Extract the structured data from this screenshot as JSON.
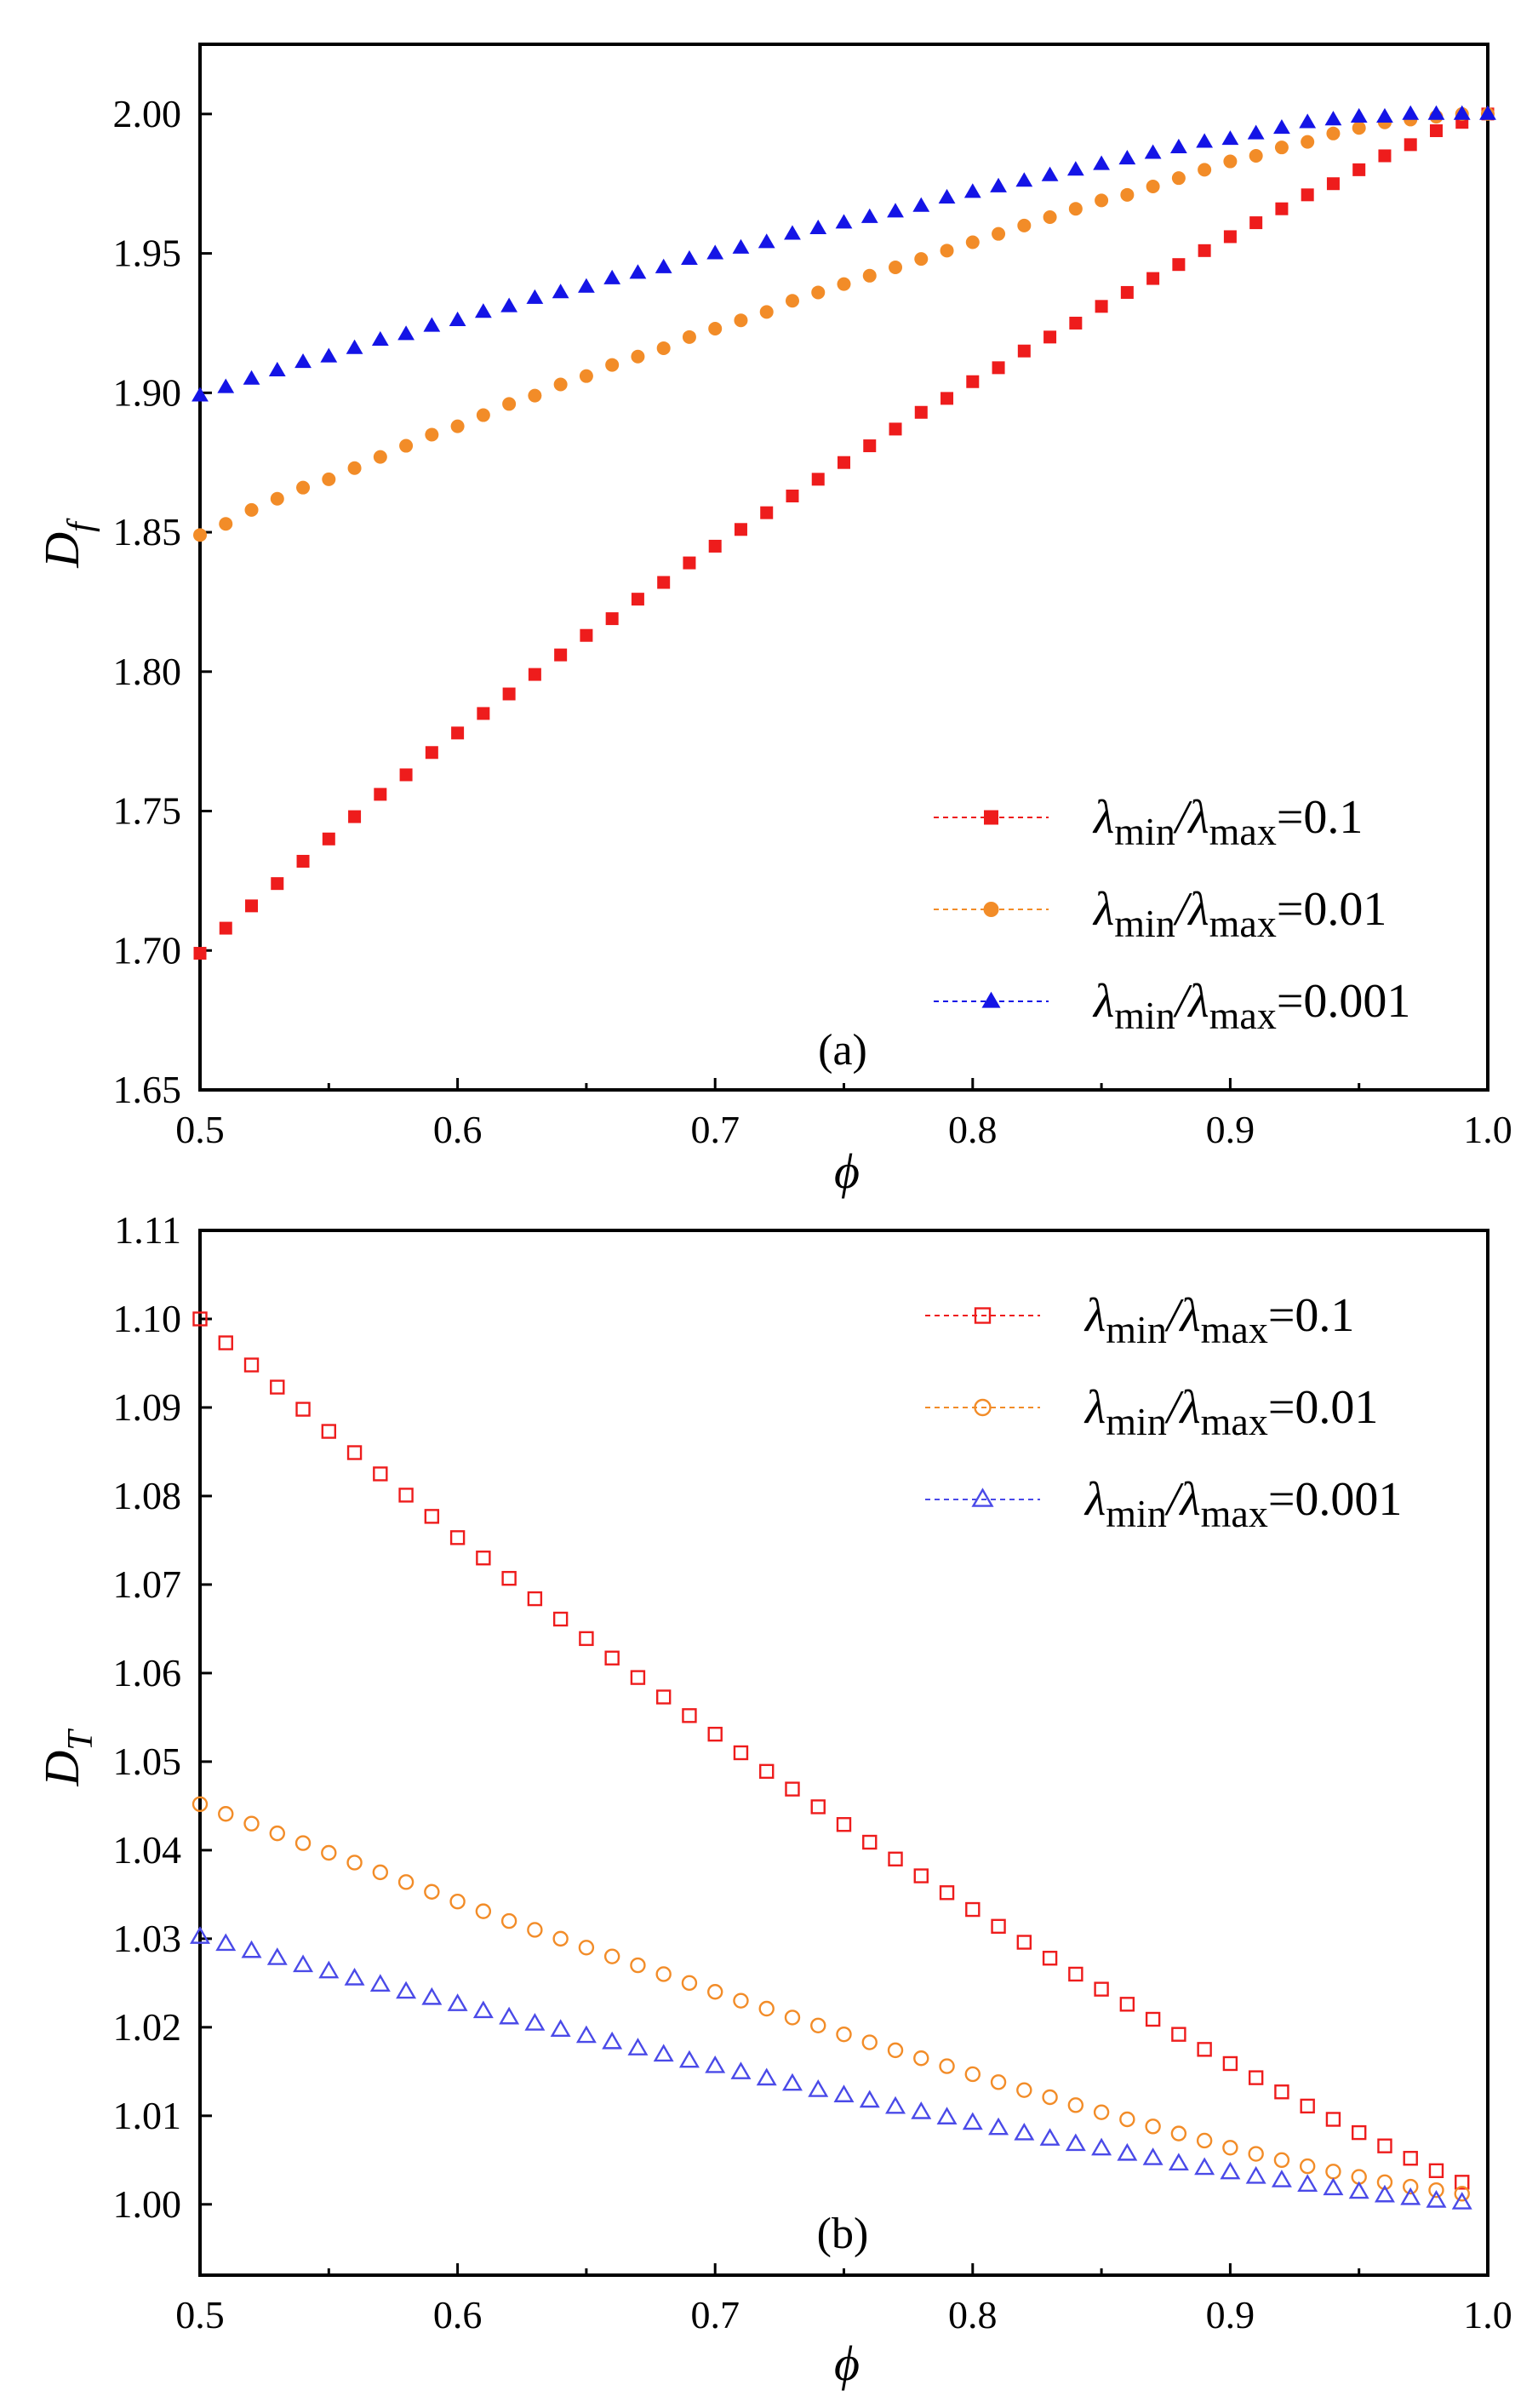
{
  "chart_data": [
    {
      "id": "a",
      "type": "scatter",
      "panel_label": "(a)",
      "xlabel": "ϕ",
      "ylabel": {
        "base": "D",
        "sub": "f"
      },
      "xlim": [
        0.5,
        1.0
      ],
      "ylim": [
        1.65,
        2.025
      ],
      "xticks": [
        0.5,
        0.6,
        0.7,
        0.8,
        0.9,
        1.0
      ],
      "xtick_labels": [
        "0.5",
        "0.6",
        "0.7",
        "0.8",
        "0.9",
        "1.0"
      ],
      "yticks": [
        1.65,
        1.7,
        1.75,
        1.8,
        1.85,
        1.9,
        1.95,
        2.0
      ],
      "ytick_labels": [
        "1.65",
        "1.70",
        "1.75",
        "1.80",
        "1.85",
        "1.90",
        "1.95",
        "2.00"
      ],
      "legend_position": "bottom-right",
      "x": [
        0.5,
        0.51,
        0.52,
        0.53,
        0.54,
        0.55,
        0.56,
        0.57,
        0.58,
        0.59,
        0.6,
        0.61,
        0.62,
        0.63,
        0.64,
        0.65,
        0.66,
        0.67,
        0.68,
        0.69,
        0.7,
        0.71,
        0.72,
        0.73,
        0.74,
        0.75,
        0.76,
        0.77,
        0.78,
        0.79,
        0.8,
        0.81,
        0.82,
        0.83,
        0.84,
        0.85,
        0.86,
        0.87,
        0.88,
        0.89,
        0.9,
        0.91,
        0.92,
        0.93,
        0.94,
        0.95,
        0.96,
        0.97,
        0.98,
        0.99,
        1.0
      ],
      "series": [
        {
          "name": "λmin/λmax=0.1",
          "legend": {
            "pre": "λ",
            "sub1": "min",
            "mid": "/λ",
            "sub2": "max",
            "post": "=0.1"
          },
          "color": "#ee1c1c",
          "marker": "square",
          "filled": true,
          "values": [
            1.699,
            1.708,
            1.716,
            1.724,
            1.732,
            1.74,
            1.748,
            1.756,
            1.763,
            1.771,
            1.778,
            1.785,
            1.792,
            1.799,
            1.806,
            1.813,
            1.819,
            1.826,
            1.832,
            1.839,
            1.845,
            1.851,
            1.857,
            1.863,
            1.869,
            1.875,
            1.881,
            1.887,
            1.893,
            1.898,
            1.904,
            1.909,
            1.915,
            1.92,
            1.925,
            1.931,
            1.936,
            1.941,
            1.946,
            1.951,
            1.956,
            1.961,
            1.966,
            1.971,
            1.975,
            1.98,
            1.985,
            1.989,
            1.994,
            1.997,
            2.0
          ]
        },
        {
          "name": "λmin/λmax=0.01",
          "legend": {
            "pre": "λ",
            "sub1": "min",
            "mid": "/λ",
            "sub2": "max",
            "post": "=0.01"
          },
          "color": "#f28c28",
          "marker": "circle",
          "filled": true,
          "values": [
            1.849,
            1.853,
            1.858,
            1.862,
            1.866,
            1.869,
            1.873,
            1.877,
            1.881,
            1.885,
            1.888,
            1.892,
            1.896,
            1.899,
            1.903,
            1.906,
            1.91,
            1.913,
            1.916,
            1.92,
            1.923,
            1.926,
            1.929,
            1.933,
            1.936,
            1.939,
            1.942,
            1.945,
            1.948,
            1.951,
            1.954,
            1.957,
            1.96,
            1.963,
            1.966,
            1.969,
            1.971,
            1.974,
            1.977,
            1.98,
            1.983,
            1.985,
            1.988,
            1.99,
            1.993,
            1.995,
            1.997,
            1.998,
            1.999,
            2.0,
            2.0
          ]
        },
        {
          "name": "λmin/λmax=0.001",
          "legend": {
            "pre": "λ",
            "sub1": "min",
            "mid": "/λ",
            "sub2": "max",
            "post": "=0.001"
          },
          "color": "#1414e6",
          "marker": "triangle",
          "filled": true,
          "values": [
            1.899,
            1.902,
            1.905,
            1.908,
            1.911,
            1.913,
            1.916,
            1.919,
            1.921,
            1.924,
            1.926,
            1.929,
            1.931,
            1.934,
            1.936,
            1.938,
            1.941,
            1.943,
            1.945,
            1.948,
            1.95,
            1.952,
            1.954,
            1.957,
            1.959,
            1.961,
            1.963,
            1.965,
            1.967,
            1.97,
            1.972,
            1.974,
            1.976,
            1.978,
            1.98,
            1.982,
            1.984,
            1.986,
            1.988,
            1.99,
            1.991,
            1.993,
            1.995,
            1.997,
            1.998,
            1.999,
            1.999,
            2.0,
            2.0,
            2.0,
            2.0
          ]
        }
      ]
    },
    {
      "id": "b",
      "type": "scatter",
      "panel_label": "(b)",
      "xlabel": "ϕ",
      "ylabel": {
        "base": "D",
        "sub": "T"
      },
      "xlim": [
        0.5,
        1.0
      ],
      "ylim": [
        0.992,
        1.11
      ],
      "xticks": [
        0.5,
        0.6,
        0.7,
        0.8,
        0.9,
        1.0
      ],
      "xtick_labels": [
        "0.5",
        "0.6",
        "0.7",
        "0.8",
        "0.9",
        "1.0"
      ],
      "yticks": [
        1.0,
        1.01,
        1.02,
        1.03,
        1.04,
        1.05,
        1.06,
        1.07,
        1.08,
        1.09,
        1.1,
        1.11
      ],
      "ytick_labels": [
        "1.00",
        "1.01",
        "1.02",
        "1.03",
        "1.04",
        "1.05",
        "1.06",
        "1.07",
        "1.08",
        "1.09",
        "1.10",
        "1.11"
      ],
      "legend_position": "top-right",
      "x": [
        0.5,
        0.51,
        0.52,
        0.53,
        0.54,
        0.55,
        0.56,
        0.57,
        0.58,
        0.59,
        0.6,
        0.61,
        0.62,
        0.63,
        0.64,
        0.65,
        0.66,
        0.67,
        0.68,
        0.69,
        0.7,
        0.71,
        0.72,
        0.73,
        0.74,
        0.75,
        0.76,
        0.77,
        0.78,
        0.79,
        0.8,
        0.81,
        0.82,
        0.83,
        0.84,
        0.85,
        0.86,
        0.87,
        0.88,
        0.89,
        0.9,
        0.91,
        0.92,
        0.93,
        0.94,
        0.95,
        0.96,
        0.97,
        0.98,
        0.99
      ],
      "series": [
        {
          "name": "λmin/λmax=0.1",
          "legend": {
            "pre": "λ",
            "sub1": "min",
            "mid": "/λ",
            "sub2": "max",
            "post": "=0.1"
          },
          "color": "#ee1c1c",
          "marker": "square",
          "filled": false,
          "values": [
            1.1,
            1.0973,
            1.0948,
            1.0923,
            1.0898,
            1.0873,
            1.0849,
            1.0825,
            1.0801,
            1.0777,
            1.0753,
            1.073,
            1.0707,
            1.0684,
            1.0661,
            1.0639,
            1.0617,
            1.0595,
            1.0573,
            1.0552,
            1.0531,
            1.051,
            1.0489,
            1.0469,
            1.0449,
            1.0429,
            1.0409,
            1.039,
            1.0371,
            1.0352,
            1.0333,
            1.0314,
            1.0296,
            1.0278,
            1.026,
            1.0243,
            1.0226,
            1.0209,
            1.0192,
            1.0175,
            1.0159,
            1.0143,
            1.0127,
            1.0111,
            1.0096,
            1.0081,
            1.0066,
            1.0052,
            1.0038,
            1.0025
          ]
        },
        {
          "name": "λmin/λmax=0.01",
          "legend": {
            "pre": "λ",
            "sub1": "min",
            "mid": "/λ",
            "sub2": "max",
            "post": "=0.01"
          },
          "color": "#f28c28",
          "marker": "circle",
          "filled": false,
          "values": [
            1.0452,
            1.0441,
            1.043,
            1.0419,
            1.0408,
            1.0397,
            1.0386,
            1.0375,
            1.0364,
            1.0353,
            1.0342,
            1.0331,
            1.032,
            1.031,
            1.03,
            1.029,
            1.028,
            1.027,
            1.026,
            1.025,
            1.024,
            1.023,
            1.0221,
            1.0211,
            1.0202,
            1.0192,
            1.0183,
            1.0174,
            1.0165,
            1.0156,
            1.0147,
            1.0138,
            1.0129,
            1.0121,
            1.0112,
            1.0104,
            1.0096,
            1.0088,
            1.008,
            1.0072,
            1.0064,
            1.0057,
            1.005,
            1.0043,
            1.0037,
            1.0031,
            1.0025,
            1.002,
            1.0016,
            1.0012
          ]
        },
        {
          "name": "λmin/λmax=0.001",
          "legend": {
            "pre": "λ",
            "sub1": "min",
            "mid": "/λ",
            "sub2": "max",
            "post": "=0.001"
          },
          "color": "#4a4ae8",
          "marker": "triangle",
          "filled": false,
          "values": [
            1.0302,
            1.0294,
            1.0286,
            1.0278,
            1.027,
            1.0263,
            1.0255,
            1.0248,
            1.024,
            1.0233,
            1.0226,
            1.0218,
            1.0211,
            1.0204,
            1.0197,
            1.019,
            1.0183,
            1.0176,
            1.0169,
            1.0162,
            1.0156,
            1.0149,
            1.0142,
            1.0136,
            1.0129,
            1.0123,
            1.0117,
            1.011,
            1.0104,
            1.0098,
            1.0092,
            1.0086,
            1.008,
            1.0074,
            1.0068,
            1.0063,
            1.0057,
            1.0052,
            1.0046,
            1.0041,
            1.0036,
            1.0031,
            1.0027,
            1.0022,
            1.0018,
            1.0014,
            1.001,
            1.0007,
            1.0004,
            1.0002
          ]
        }
      ]
    }
  ]
}
